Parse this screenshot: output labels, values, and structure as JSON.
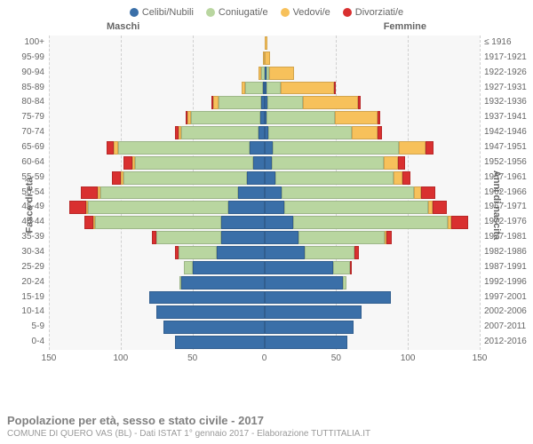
{
  "legend": [
    {
      "label": "Celibi/Nubili",
      "color": "#3a6fa8"
    },
    {
      "label": "Coniugati/e",
      "color": "#b9d6a0"
    },
    {
      "label": "Vedovi/e",
      "color": "#f7c15b"
    },
    {
      "label": "Divorziati/e",
      "color": "#d93030"
    }
  ],
  "side_labels": {
    "male": "Maschi",
    "female": "Femmine"
  },
  "yaxis": {
    "left_title": "Fasce di età",
    "right_title": "Anni di nascita"
  },
  "xaxis": {
    "max": 150,
    "ticks": [
      150,
      100,
      50,
      0,
      50,
      100,
      150
    ]
  },
  "colors": {
    "celibi": "#3a6fa8",
    "coniugati": "#b9d6a0",
    "vedovi": "#f7c15b",
    "divorziati": "#d93030",
    "plot_bg": "#f7f7f7",
    "grid": "#d0d0d0"
  },
  "rows": [
    {
      "age": "100+",
      "birth": "≤ 1916",
      "m": [
        0,
        0,
        0,
        0
      ],
      "f": [
        0,
        0,
        2,
        0
      ]
    },
    {
      "age": "95-99",
      "birth": "1917-1921",
      "m": [
        0,
        0,
        1,
        0
      ],
      "f": [
        0,
        0,
        4,
        0
      ]
    },
    {
      "age": "90-94",
      "birth": "1922-1926",
      "m": [
        0,
        2,
        2,
        0
      ],
      "f": [
        1,
        2,
        18,
        0
      ]
    },
    {
      "age": "85-89",
      "birth": "1927-1931",
      "m": [
        1,
        12,
        3,
        0
      ],
      "f": [
        1,
        10,
        38,
        1
      ]
    },
    {
      "age": "80-84",
      "birth": "1932-1936",
      "m": [
        2,
        30,
        4,
        1
      ],
      "f": [
        2,
        25,
        38,
        2
      ]
    },
    {
      "age": "75-79",
      "birth": "1937-1941",
      "m": [
        3,
        48,
        3,
        1
      ],
      "f": [
        1,
        48,
        30,
        2
      ]
    },
    {
      "age": "70-74",
      "birth": "1942-1946",
      "m": [
        4,
        54,
        2,
        2
      ],
      "f": [
        3,
        58,
        18,
        3
      ]
    },
    {
      "age": "65-69",
      "birth": "1947-1951",
      "m": [
        10,
        92,
        3,
        5
      ],
      "f": [
        6,
        88,
        18,
        6
      ]
    },
    {
      "age": "60-64",
      "birth": "1952-1956",
      "m": [
        8,
        82,
        2,
        6
      ],
      "f": [
        5,
        78,
        10,
        5
      ]
    },
    {
      "age": "55-59",
      "birth": "1957-1961",
      "m": [
        12,
        86,
        2,
        6
      ],
      "f": [
        8,
        82,
        6,
        6
      ]
    },
    {
      "age": "50-54",
      "birth": "1962-1966",
      "m": [
        18,
        96,
        2,
        12
      ],
      "f": [
        12,
        92,
        5,
        10
      ]
    },
    {
      "age": "45-49",
      "birth": "1967-1971",
      "m": [
        25,
        98,
        1,
        12
      ],
      "f": [
        14,
        100,
        3,
        10
      ]
    },
    {
      "age": "40-44",
      "birth": "1972-1976",
      "m": [
        30,
        88,
        1,
        6
      ],
      "f": [
        20,
        108,
        2,
        12
      ]
    },
    {
      "age": "35-39",
      "birth": "1977-1981",
      "m": [
        30,
        45,
        0,
        3
      ],
      "f": [
        24,
        60,
        1,
        4
      ]
    },
    {
      "age": "30-34",
      "birth": "1982-1986",
      "m": [
        33,
        27,
        0,
        2
      ],
      "f": [
        28,
        35,
        0,
        3
      ]
    },
    {
      "age": "25-29",
      "birth": "1987-1991",
      "m": [
        50,
        6,
        0,
        0
      ],
      "f": [
        48,
        12,
        0,
        1
      ]
    },
    {
      "age": "20-24",
      "birth": "1992-1996",
      "m": [
        58,
        1,
        0,
        0
      ],
      "f": [
        55,
        2,
        0,
        0
      ]
    },
    {
      "age": "15-19",
      "birth": "1997-2001",
      "m": [
        80,
        0,
        0,
        0
      ],
      "f": [
        88,
        0,
        0,
        0
      ]
    },
    {
      "age": "10-14",
      "birth": "2002-2006",
      "m": [
        75,
        0,
        0,
        0
      ],
      "f": [
        68,
        0,
        0,
        0
      ]
    },
    {
      "age": "5-9",
      "birth": "2007-2011",
      "m": [
        70,
        0,
        0,
        0
      ],
      "f": [
        62,
        0,
        0,
        0
      ]
    },
    {
      "age": "0-4",
      "birth": "2012-2016",
      "m": [
        62,
        0,
        0,
        0
      ],
      "f": [
        58,
        0,
        0,
        0
      ]
    }
  ],
  "footer": {
    "title": "Popolazione per età, sesso e stato civile - 2017",
    "subtitle": "COMUNE DI QUERO VAS (BL) - Dati ISTAT 1° gennaio 2017 - Elaborazione TUTTITALIA.IT"
  }
}
